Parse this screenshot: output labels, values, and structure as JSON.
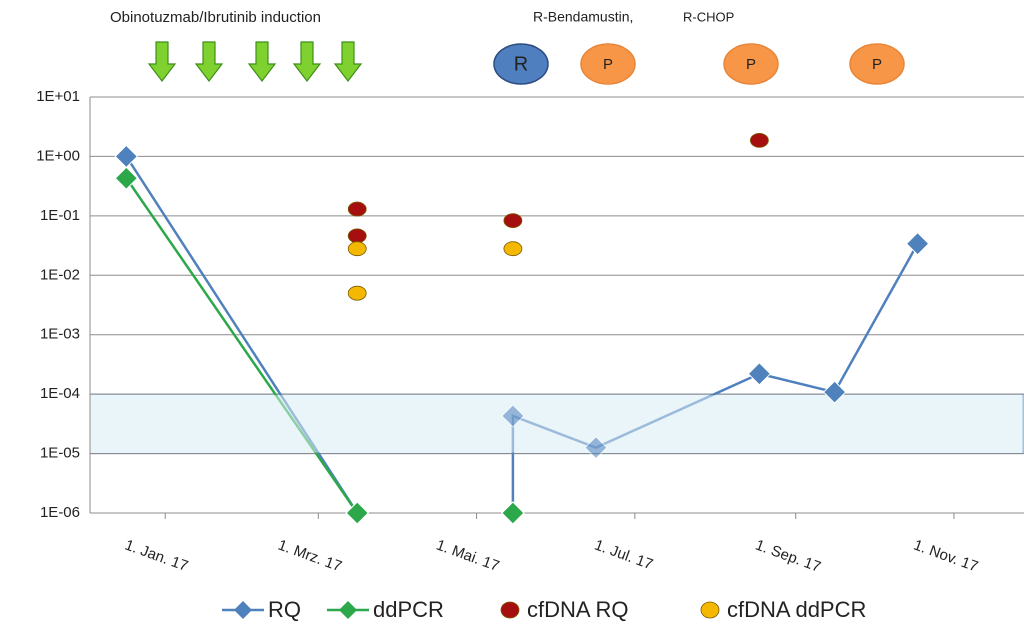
{
  "chart_data": {
    "type": "line",
    "top_label": "Obinotuzmab/Ibrutinib  induction",
    "therapy_labels": [
      "R-Bendamustin,",
      "R-CHOP"
    ],
    "therapy_markers": [
      "R",
      "P",
      "P",
      "P"
    ],
    "log_y": true,
    "grid": true,
    "band": [
      1e-05,
      0.0001
    ],
    "xlim": [
      "2016-12-03",
      "2017-11-28"
    ],
    "xticks": [
      {
        "value": "2017-01-01",
        "label": "1. Jan. 17"
      },
      {
        "value": "2017-03-01",
        "label": "1. Mrz. 17"
      },
      {
        "value": "2017-05-01",
        "label": "1. Mai. 17"
      },
      {
        "value": "2017-07-01",
        "label": "1. Jul. 17"
      },
      {
        "value": "2017-09-01",
        "label": "1. Sep. 17"
      },
      {
        "value": "2017-11-01",
        "label": "1. Nov. 17"
      }
    ],
    "ylim": [
      1e-06,
      10
    ],
    "yticks": [
      {
        "value": 10,
        "label": "1E+01"
      },
      {
        "value": 1,
        "label": "1E+00"
      },
      {
        "value": 0.1,
        "label": "1E-01"
      },
      {
        "value": 0.01,
        "label": "1E-02"
      },
      {
        "value": 0.001,
        "label": "1E-03"
      },
      {
        "value": 0.0001,
        "label": "1E-04"
      },
      {
        "value": 1e-05,
        "label": "1E-05"
      },
      {
        "value": 1e-06,
        "label": "1E-06"
      }
    ],
    "series": [
      {
        "name": "RQ",
        "color": "#4f81bd",
        "marker": "diamond",
        "connected": true,
        "x": [
          "2016-12-17",
          "2017-03-16",
          "2017-05-15",
          "2017-05-15",
          "2017-05-15",
          "2017-06-16",
          "2017-08-18",
          "2017-09-16",
          "2017-10-18"
        ],
        "values": [
          1,
          1e-06,
          null,
          1e-06,
          4.3e-05,
          1.26e-05,
          0.00022,
          0.000108,
          0.034
        ]
      },
      {
        "name": "ddPCR",
        "color": "#2ca84a",
        "marker": "diamond",
        "connected": true,
        "x": [
          "2016-12-17",
          "2017-03-16",
          "2017-05-15",
          "2017-05-15"
        ],
        "values": [
          0.43,
          1e-06,
          null,
          1e-06
        ]
      },
      {
        "name": "cfDNA RQ",
        "color": "#a50f0f",
        "marker": "circle",
        "connected": false,
        "x": [
          "2017-03-16",
          "2017-03-16",
          "2017-05-15",
          "2017-08-18"
        ],
        "values": [
          0.13,
          0.046,
          0.083,
          1.86
        ]
      },
      {
        "name": "cfDNA ddPCR",
        "color": "#f5b800",
        "marker": "circle",
        "connected": false,
        "x": [
          "2017-03-16",
          "2017-03-16",
          "2017-05-15"
        ],
        "values": [
          0.028,
          0.005,
          0.028
        ]
      }
    ]
  }
}
